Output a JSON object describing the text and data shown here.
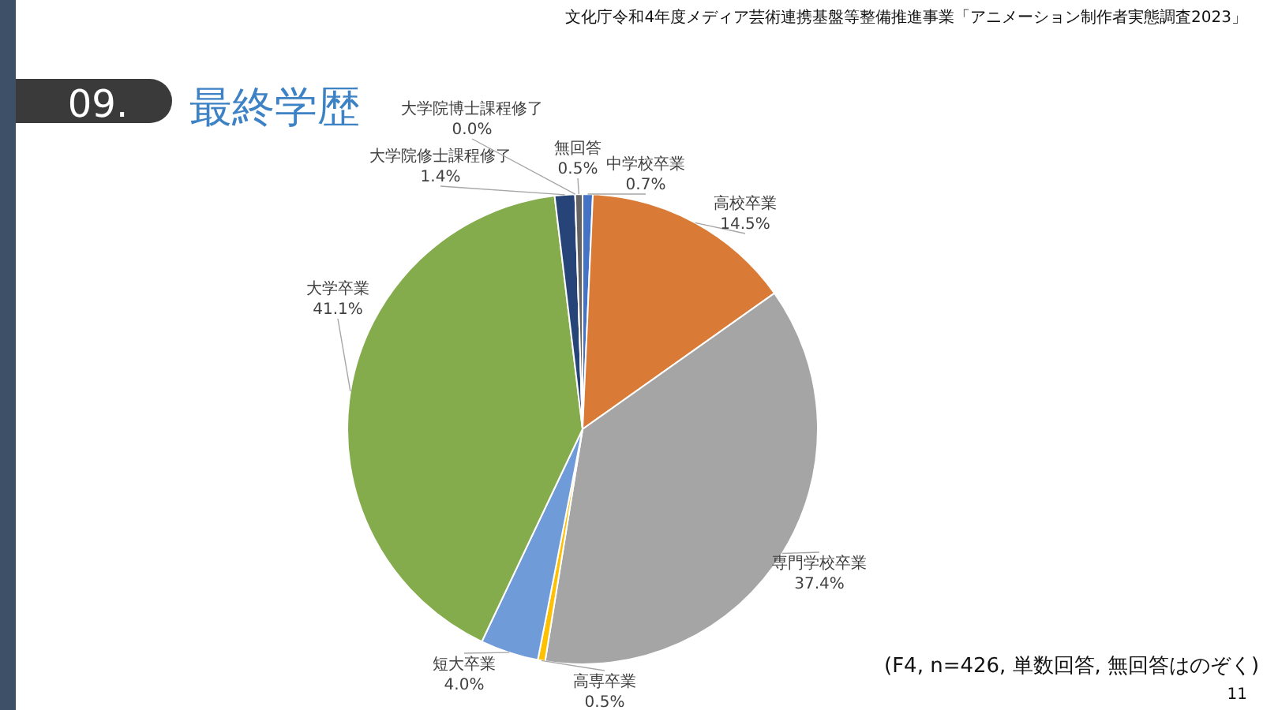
{
  "chart_data": {
    "type": "pie",
    "title": "最終学歴",
    "categories": [
      "中学校卒業",
      "高校卒業",
      "専門学校卒業",
      "高専卒業",
      "短大卒業",
      "大学卒業",
      "大学院修士課程修了",
      "大学院博士課程修了",
      "無回答"
    ],
    "values": [
      0.7,
      14.5,
      37.4,
      0.5,
      4.0,
      41.1,
      1.4,
      0.0,
      0.5
    ],
    "colors": [
      "#4472c4",
      "#d97b36",
      "#a5a5a5",
      "#ffc000",
      "#6f9bd8",
      "#84ac4c",
      "#264478",
      "#9e480e",
      "#636363"
    ],
    "value_labels": [
      "0.7%",
      "14.5%",
      "37.4%",
      "0.5%",
      "4.0%",
      "41.1%",
      "1.4%",
      "0.0%",
      "0.5%"
    ],
    "annotations": [
      "09.",
      "文化庁令和4年度メディア芸術連携基盤等整備推進事業「アニメーション制作者実態調査2023」",
      "(F4, n=426, 単数回答, 無回答はのぞく)",
      "11"
    ]
  }
}
